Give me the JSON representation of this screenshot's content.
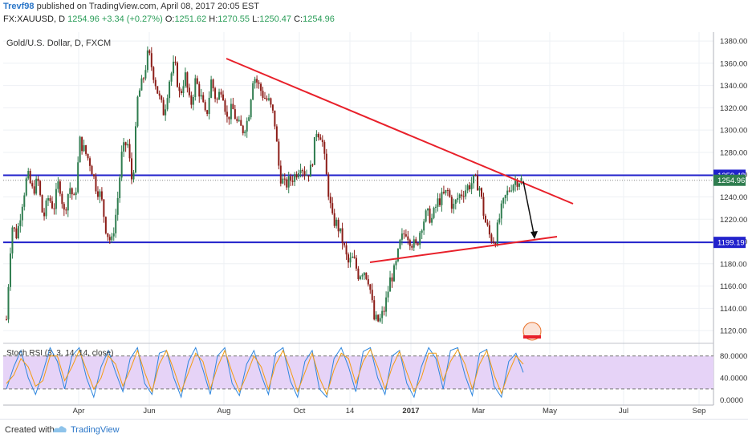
{
  "header": {
    "author": "Trevf98",
    "published": "published on TradingView.com, April 08, 2017 20:05 EST",
    "symbol": "FX:XAUUSD, D",
    "price": "1254.96",
    "change": "+3.34 (+0.27%)",
    "o_label": "O:",
    "o_val": "1251.62",
    "h_label": "H:",
    "h_val": "1270.55",
    "l_label": "L:",
    "l_val": "1250.47",
    "c_label": "C:",
    "c_val": "1254.96"
  },
  "footer": {
    "created": "Created with",
    "brand": "TradingView"
  },
  "colors": {
    "up": "#2f7d4f",
    "down": "#8c1d18",
    "hline": "#2222cc",
    "trend": "#e8202a",
    "rsi_k": "#2e86de",
    "rsi_d": "#f39c12",
    "rsi_band": "#e6d3f7"
  },
  "chart_data": [
    {
      "type": "candlestick",
      "title": "Gold/U.S. Dollar, D, FXCM",
      "y_ticks": [
        1120,
        1140,
        1160,
        1180,
        1200,
        1220,
        1240,
        1260,
        1280,
        1300,
        1320,
        1340,
        1360,
        1380
      ],
      "ylim": [
        1110,
        1388
      ],
      "x_labels": [
        "Apr",
        "Jun",
        "Aug",
        "Oct",
        "14",
        "2017",
        "Mar",
        "May",
        "Jul",
        "Sep"
      ],
      "price_labels": [
        {
          "value": 1259.48,
          "text": "1259.48",
          "color": "#2222cc"
        },
        {
          "value": 1254.96,
          "text": "1254.96",
          "color": "#2f7d4f"
        },
        {
          "value": 1199.19,
          "text": "1199.19",
          "color": "#2222cc"
        }
      ],
      "horizontal_lines": [
        1259.48,
        1199.19
      ],
      "path": [
        1130,
        1215,
        1205,
        1235,
        1260,
        1245,
        1255,
        1220,
        1240,
        1230,
        1255,
        1225,
        1250,
        1235,
        1290,
        1280,
        1270,
        1250,
        1240,
        1210,
        1198,
        1230,
        1280,
        1290,
        1250,
        1330,
        1345,
        1370,
        1350,
        1330,
        1315,
        1345,
        1360,
        1330,
        1350,
        1320,
        1345,
        1330,
        1310,
        1345,
        1325,
        1340,
        1310,
        1320,
        1305,
        1300,
        1310,
        1350,
        1340,
        1330,
        1325,
        1310,
        1260,
        1250,
        1255,
        1260,
        1270,
        1260,
        1265,
        1300,
        1295,
        1255,
        1220,
        1215,
        1200,
        1180,
        1185,
        1170,
        1175,
        1165,
        1130,
        1128,
        1140,
        1165,
        1175,
        1200,
        1210,
        1200,
        1195,
        1215,
        1225,
        1220,
        1235,
        1240,
        1245,
        1230,
        1240,
        1245,
        1250,
        1255,
        1250,
        1220,
        1205,
        1200,
        1225,
        1240,
        1250,
        1255,
        1255
      ]
    },
    {
      "type": "line",
      "title": "Stoch RSI (3, 3, 14, 14, close)",
      "y_ticks": [
        0,
        40,
        80
      ],
      "y_tick_labels": [
        "0.0000",
        "40.0000",
        "80.0000"
      ],
      "ylim": [
        -5,
        100
      ],
      "band": [
        20,
        80
      ],
      "series": [
        {
          "values": [
            20,
            60,
            90,
            40,
            10,
            50,
            95,
            70,
            20,
            80,
            95,
            40,
            5,
            60,
            90,
            50,
            15,
            75,
            95,
            30,
            10,
            85,
            90,
            40,
            5,
            70,
            95,
            55,
            10,
            80,
            95,
            30,
            8,
            65,
            90,
            45,
            10,
            85,
            95,
            35,
            5,
            70,
            90,
            20,
            5,
            75,
            95,
            60,
            15,
            88,
            95,
            40,
            10,
            80,
            90,
            30,
            5,
            60,
            95,
            75,
            20,
            90,
            95,
            45,
            8,
            85,
            92,
            25,
            5,
            70,
            85,
            50
          ]
        },
        {
          "values": [
            30,
            45,
            75,
            60,
            25,
            35,
            80,
            80,
            35,
            60,
            90,
            55,
            20,
            40,
            80,
            65,
            25,
            55,
            90,
            50,
            15,
            65,
            90,
            55,
            15,
            50,
            85,
            70,
            20,
            60,
            90,
            50,
            15,
            45,
            80,
            60,
            20,
            65,
            90,
            55,
            15,
            50,
            85,
            40,
            10,
            55,
            85,
            75,
            30,
            70,
            92,
            60,
            20,
            60,
            88,
            50,
            15,
            40,
            85,
            85,
            35,
            70,
            92,
            65,
            20,
            65,
            90,
            45,
            12,
            50,
            80,
            65
          ]
        }
      ]
    }
  ]
}
